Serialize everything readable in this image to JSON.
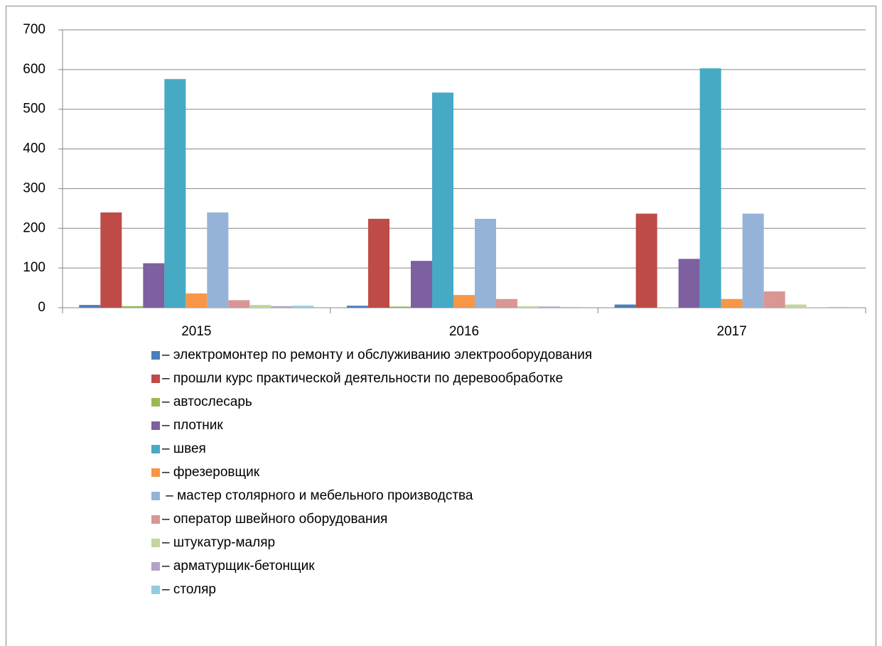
{
  "chart_data": {
    "type": "bar",
    "categories": [
      "2015",
      "2016",
      "2017"
    ],
    "series": [
      {
        "name": "– электромонтер по ремонту и обслуживанию электрооборудования",
        "color": "#4a7ebb",
        "values": [
          7,
          5,
          8
        ]
      },
      {
        "name": "– прошли курс практической деятельности по деревообработке",
        "color": "#be4b48",
        "values": [
          240,
          224,
          237
        ]
      },
      {
        "name": "– автослесарь",
        "color": "#98b954",
        "values": [
          4,
          3,
          1
        ]
      },
      {
        "name": "– плотник",
        "color": "#7d60a0",
        "values": [
          112,
          118,
          123
        ]
      },
      {
        "name": "– швея",
        "color": "#46aac5",
        "values": [
          576,
          542,
          603
        ]
      },
      {
        "name": "– фрезеровщик",
        "color": "#f79646",
        "values": [
          36,
          32,
          22
        ]
      },
      {
        "name": " – мастер столярного и мебельного производства",
        "color": "#95b3d7",
        "values": [
          240,
          224,
          237
        ]
      },
      {
        "name": "– оператор швейного оборудования",
        "color": "#d99694",
        "values": [
          19,
          22,
          41
        ]
      },
      {
        "name": "– штукатур-маляр",
        "color": "#c3d69b",
        "values": [
          7,
          4,
          8
        ]
      },
      {
        "name": "– арматурщик-бетонщик",
        "color": "#b3a2c7",
        "values": [
          4,
          3,
          1
        ]
      },
      {
        "name": "– столяр",
        "color": "#93cddd",
        "values": [
          5,
          2,
          2
        ]
      }
    ],
    "ylim": [
      0,
      700
    ],
    "yticks": [
      0,
      100,
      200,
      300,
      400,
      500,
      600,
      700
    ],
    "grid": true
  }
}
